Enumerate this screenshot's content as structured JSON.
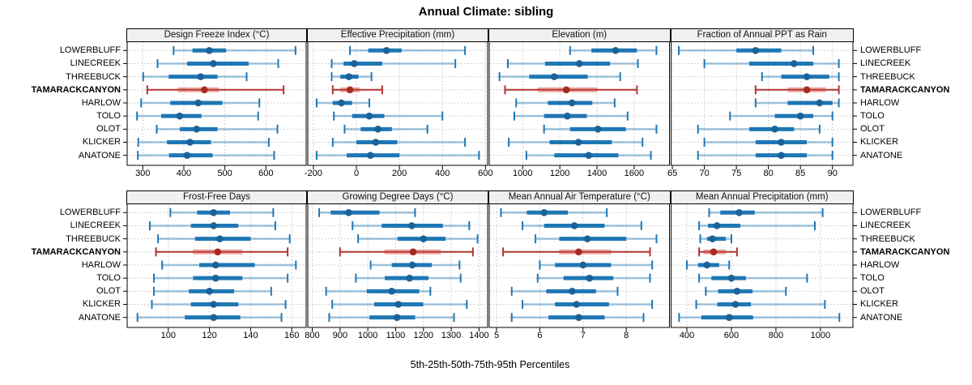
{
  "title": "Annual Climate: sibling",
  "xlabel": "5th-25th-50th-75th-95th Percentiles",
  "colors": {
    "blue_main": "#1f77b4",
    "blue_dot": "#1a6298",
    "blue_whisker": "rgba(31,119,180,0.42)",
    "red_main": "#b23430",
    "red_dot": "#a52a21",
    "red_band": "rgba(203,67,53,0.45)",
    "grid": "#c4c4c4",
    "panel_border": "#000000",
    "strip_bg": "#f0f0f0"
  },
  "sites": [
    {
      "name": "LOWERBLUFF",
      "highlight": false
    },
    {
      "name": "LINECREEK",
      "highlight": false
    },
    {
      "name": "THREEBUCK",
      "highlight": false
    },
    {
      "name": "TAMARACKCANYON",
      "highlight": true
    },
    {
      "name": "HARLOW",
      "highlight": false
    },
    {
      "name": "TOLO",
      "highlight": false
    },
    {
      "name": "OLOT",
      "highlight": false
    },
    {
      "name": "KLICKER",
      "highlight": false
    },
    {
      "name": "ANATONE",
      "highlight": false
    }
  ],
  "chart_data": {
    "type": "scatter",
    "subtype": "trellis-percentile-dotplot",
    "percentiles": [
      5,
      25,
      50,
      75,
      95
    ],
    "highlight_site": "TAMARACKCANYON",
    "legend_position": "none",
    "grid": "dotted",
    "panels": [
      {
        "title": "Design Freeze Index (°C)",
        "key": "design_freeze_index",
        "row": 0,
        "col": 0,
        "xlim": [
          262,
          698
        ],
        "ticks": [
          300,
          400,
          500,
          600
        ],
        "series": {
          "LOWERBLUFF": [
            375,
            421,
            462,
            503,
            672
          ],
          "LINECREEK": [
            336,
            408,
            472,
            558,
            630
          ],
          "THREEBUCK": [
            301,
            363,
            441,
            482,
            553
          ],
          "TAMARACKCANYON": [
            311,
            385,
            450,
            485,
            643
          ],
          "HARLOW": [
            296,
            367,
            435,
            494,
            584
          ],
          "TOLO": [
            286,
            345,
            390,
            443,
            581
          ],
          "OLOT": [
            334,
            390,
            431,
            482,
            628
          ],
          "KLICKER": [
            289,
            359,
            415,
            466,
            607
          ],
          "ANATONE": [
            288,
            364,
            408,
            470,
            620
          ]
        }
      },
      {
        "title": "Effective Precipitation (mm)",
        "key": "effective_precipitation",
        "row": 0,
        "col": 1,
        "xlim": [
          -226,
          610
        ],
        "ticks": [
          -200,
          0,
          200,
          400,
          600
        ],
        "series": {
          "LOWERBLUFF": [
            -30,
            55,
            140,
            210,
            505
          ],
          "LINECREEK": [
            -115,
            -60,
            -10,
            120,
            460
          ],
          "THREEBUCK": [
            -115,
            -75,
            -35,
            10,
            70
          ],
          "TAMARACKCANYON": [
            -110,
            -75,
            -30,
            15,
            120
          ],
          "HARLOW": [
            -185,
            -110,
            -70,
            -20,
            60
          ],
          "TOLO": [
            -105,
            -20,
            60,
            130,
            400
          ],
          "OLOT": [
            -55,
            20,
            100,
            165,
            330
          ],
          "KLICKER": [
            -110,
            0,
            90,
            190,
            505
          ],
          "ANATONE": [
            -185,
            -45,
            65,
            200,
            570
          ]
        }
      },
      {
        "title": "Elevation (m)",
        "key": "elevation",
        "row": 0,
        "col": 2,
        "xlim": [
          820,
          1790
        ],
        "ticks": [
          1000,
          1200,
          1400,
          1600
        ],
        "series": {
          "LOWERBLUFF": [
            1255,
            1370,
            1500,
            1615,
            1720
          ],
          "LINECREEK": [
            920,
            1120,
            1305,
            1470,
            1620
          ],
          "THREEBUCK": [
            875,
            1035,
            1170,
            1350,
            1525
          ],
          "TAMARACKCANYON": [
            905,
            1080,
            1235,
            1400,
            1615
          ],
          "HARLOW": [
            965,
            1135,
            1265,
            1375,
            1495
          ],
          "TOLO": [
            955,
            1115,
            1240,
            1345,
            1565
          ],
          "OLOT": [
            1115,
            1255,
            1405,
            1555,
            1720
          ],
          "KLICKER": [
            925,
            1145,
            1300,
            1480,
            1645
          ],
          "ANATONE": [
            1020,
            1170,
            1355,
            1515,
            1690
          ]
        }
      },
      {
        "title": "Fraction of Annual PPT as Rain",
        "key": "fraction_of_annual_ppt_as_rain",
        "row": 0,
        "col": 3,
        "xlim": [
          64.8,
          93.2
        ],
        "ticks": [
          65,
          70,
          75,
          80,
          85,
          90
        ],
        "series": {
          "LOWERBLUFF": [
            66,
            75,
            78,
            82,
            87
          ],
          "LINECREEK": [
            70,
            77,
            84,
            87,
            91
          ],
          "THREEBUCK": [
            79,
            82,
            86,
            89.5,
            91
          ],
          "TAMARACKCANYON": [
            78,
            83,
            86,
            89,
            91
          ],
          "HARLOW": [
            78,
            83,
            88,
            90,
            91
          ],
          "TOLO": [
            74,
            81,
            85,
            87,
            90
          ],
          "OLOT": [
            69,
            77,
            81,
            84,
            88
          ],
          "KLICKER": [
            70,
            78,
            82,
            86,
            90
          ],
          "ANATONE": [
            69,
            78,
            82,
            86,
            90
          ]
        }
      },
      {
        "title": "Frost-Free Days",
        "key": "frost_free_days",
        "row": 1,
        "col": 0,
        "xlim": [
          80,
          167
        ],
        "ticks": [
          100,
          120,
          140,
          160
        ],
        "series": {
          "LOWERBLUFF": [
            101,
            114,
            122,
            130,
            151
          ],
          "LINECREEK": [
            91,
            111,
            122,
            134,
            152
          ],
          "THREEBUCK": [
            95,
            113,
            125,
            140,
            159
          ],
          "TAMARACKCANYON": [
            94,
            112,
            124,
            136,
            158
          ],
          "HARLOW": [
            97,
            115,
            123,
            142,
            162
          ],
          "TOLO": [
            93,
            112,
            123,
            136,
            158
          ],
          "OLOT": [
            93,
            110,
            120,
            132,
            150
          ],
          "KLICKER": [
            92,
            111,
            122,
            134,
            157
          ],
          "ANATONE": [
            85,
            108,
            122,
            135,
            155
          ]
        }
      },
      {
        "title": "Growing Degree Days (°C)",
        "key": "growing_degree_days",
        "row": 1,
        "col": 1,
        "xlim": [
          784,
          1431
        ],
        "ticks": [
          800,
          900,
          1000,
          1100,
          1200,
          1300,
          1400
        ],
        "series": {
          "LOWERBLUFF": [
            825,
            866,
            931,
            1042,
            1170
          ],
          "LINECREEK": [
            945,
            1050,
            1158,
            1270,
            1365
          ],
          "THREEBUCK": [
            965,
            1107,
            1200,
            1280,
            1395
          ],
          "TAMARACKCANYON": [
            900,
            1060,
            1163,
            1262,
            1378
          ],
          "HARLOW": [
            1010,
            1086,
            1160,
            1230,
            1330
          ],
          "TOLO": [
            957,
            1061,
            1150,
            1218,
            1334
          ],
          "OLOT": [
            850,
            996,
            1086,
            1185,
            1225
          ],
          "KLICKER": [
            872,
            1023,
            1110,
            1199,
            1356
          ],
          "ANATONE": [
            861,
            1006,
            1105,
            1170,
            1310
          ]
        }
      },
      {
        "title": "Mean Annual Air Temperature (°C)",
        "key": "mean_annual_air_temperature",
        "row": 1,
        "col": 2,
        "xlim": [
          4.83,
          9.0
        ],
        "ticks": [
          5,
          6,
          7,
          8
        ],
        "series": {
          "LOWERBLUFF": [
            5.1,
            5.7,
            6.1,
            6.65,
            7.55
          ],
          "LINECREEK": [
            5.6,
            6.1,
            6.8,
            7.5,
            8.35
          ],
          "THREEBUCK": [
            5.9,
            6.45,
            7.1,
            8.0,
            8.7
          ],
          "TAMARACKCANYON": [
            5.15,
            6.45,
            6.9,
            7.65,
            8.55
          ],
          "HARLOW": [
            6.0,
            6.35,
            7.0,
            7.65,
            8.6
          ],
          "TOLO": [
            5.95,
            6.55,
            7.15,
            7.7,
            8.55
          ],
          "OLOT": [
            5.35,
            6.15,
            6.75,
            7.3,
            7.8
          ],
          "KLICKER": [
            5.6,
            6.35,
            6.85,
            7.6,
            8.6
          ],
          "ANATONE": [
            5.35,
            6.2,
            6.9,
            7.5,
            8.4
          ]
        }
      },
      {
        "title": "Mean Annual Precipitation (mm)",
        "key": "mean_annual_precipitation",
        "row": 1,
        "col": 3,
        "xlim": [
          329,
          1146
        ],
        "ticks": [
          400,
          600,
          800,
          1000
        ],
        "series": {
          "LOWERBLUFF": [
            500,
            550,
            635,
            705,
            1010
          ],
          "LINECREEK": [
            455,
            495,
            535,
            640,
            975
          ],
          "THREEBUCK": [
            460,
            490,
            515,
            575,
            600
          ],
          "TAMARACKCANYON": [
            455,
            475,
            520,
            575,
            625
          ],
          "HARLOW": [
            400,
            450,
            490,
            545,
            590
          ],
          "TOLO": [
            455,
            510,
            600,
            665,
            940
          ],
          "OLOT": [
            485,
            540,
            625,
            695,
            845
          ],
          "KLICKER": [
            442,
            537,
            618,
            688,
            1020
          ],
          "ANATONE": [
            365,
            465,
            590,
            697,
            1085
          ]
        }
      }
    ]
  }
}
